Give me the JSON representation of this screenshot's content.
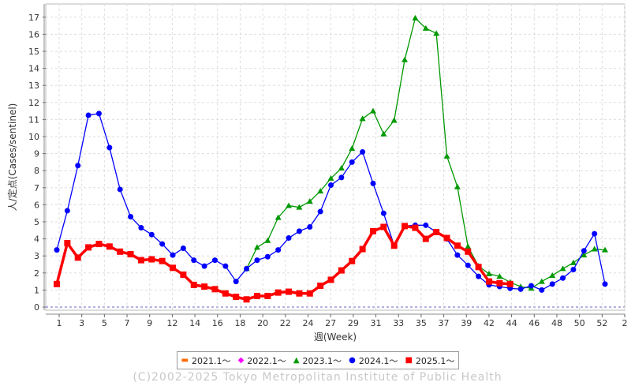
{
  "chart_data": {
    "type": "line",
    "title": "",
    "xlabel": "週(Week)",
    "ylabel": "人/定点(Cases/sentinel)",
    "ylim": [
      0,
      17.5
    ],
    "yticks": [
      0,
      1,
      2,
      3,
      4,
      5,
      6,
      7,
      8,
      9,
      10,
      11,
      12,
      13,
      14,
      15,
      16,
      17
    ],
    "xtick_labels": [
      "1",
      "3",
      "5",
      "7",
      "9",
      "12",
      "14",
      "16",
      "18",
      "20",
      "22",
      "24",
      "27",
      "29",
      "31",
      "33",
      "35",
      "37",
      "39",
      "42",
      "44",
      "46",
      "48",
      "50",
      "52",
      "2"
    ],
    "grid": true,
    "legend_placement": "bottom",
    "series": [
      {
        "name": "2021.1〜",
        "color": "#ff6600",
        "marker": "dash",
        "start_week": 1,
        "values": []
      },
      {
        "name": "2022.1〜",
        "color": "#ff00ff",
        "marker": "diamond",
        "start_week": 1,
        "values": []
      },
      {
        "name": "2023.1〜",
        "color": "#009900",
        "marker": "triangle",
        "start_week": 19,
        "values": [
          2.25,
          3.5,
          3.9,
          5.25,
          5.95,
          5.85,
          6.2,
          6.8,
          7.55,
          8.15,
          9.3,
          11.05,
          11.5,
          10.15,
          10.95,
          14.5,
          16.95,
          16.35,
          16.05,
          8.85,
          7.05,
          3.55,
          2.4,
          1.95,
          1.8,
          1.45,
          1.2,
          1.1,
          1.5,
          1.85,
          2.25,
          2.6,
          3.05,
          3.4,
          3.35
        ]
      },
      {
        "name": "2024.1〜",
        "color": "#0000ff",
        "marker": "circle",
        "start_week": 1,
        "values": [
          3.35,
          5.65,
          8.3,
          11.25,
          11.35,
          9.35,
          6.9,
          5.3,
          4.65,
          4.25,
          3.7,
          3.05,
          3.45,
          2.75,
          2.4,
          2.75,
          2.4,
          1.5,
          2.25,
          2.75,
          2.95,
          3.35,
          4.05,
          4.45,
          4.7,
          5.6,
          7.15,
          7.6,
          8.5,
          9.1,
          7.25,
          5.5,
          3.6,
          4.75,
          4.8,
          4.8,
          4.4,
          4.0,
          3.05,
          2.45,
          1.8,
          1.3,
          1.2,
          1.1,
          1.05,
          1.25,
          1.0,
          1.35,
          1.7,
          2.2,
          3.3,
          4.3,
          1.35
        ]
      },
      {
        "name": "2025.1〜",
        "color": "#ff0000",
        "marker": "square",
        "start_week": 1,
        "values": [
          1.35,
          3.75,
          2.9,
          3.5,
          3.7,
          3.55,
          3.25,
          3.1,
          2.75,
          2.8,
          2.7,
          2.3,
          1.9,
          1.3,
          1.2,
          1.05,
          0.8,
          0.6,
          0.45,
          0.65,
          0.65,
          0.85,
          0.9,
          0.8,
          0.8,
          1.25,
          1.6,
          2.15,
          2.7,
          3.4,
          4.45,
          4.7,
          3.6,
          4.75,
          4.65,
          4.0,
          4.4,
          4.05,
          3.6,
          3.25,
          2.35,
          1.5,
          1.4,
          1.35
        ]
      }
    ],
    "total_points": 53
  },
  "copyright": "(C)2002-2025 Tokyo Metropolitan Institute of Public Health"
}
